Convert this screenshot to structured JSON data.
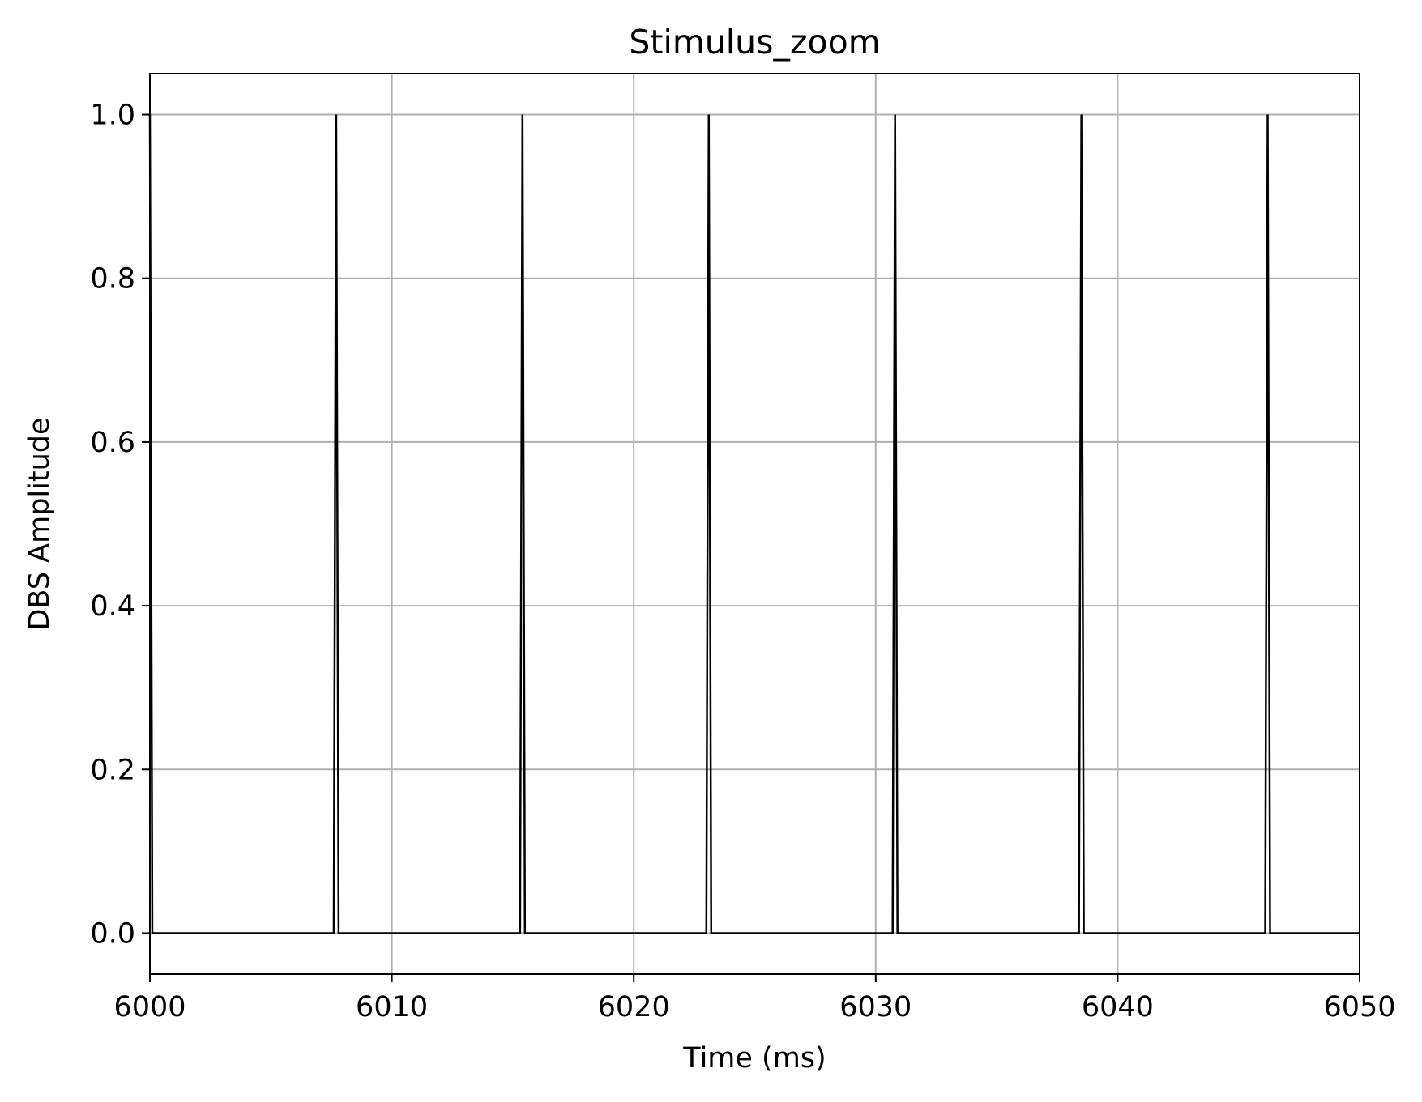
{
  "chart_data": {
    "type": "line",
    "title": "Stimulus_zoom",
    "xlabel": "Time (ms)",
    "ylabel": "DBS Amplitude",
    "xlim": [
      6000,
      6050
    ],
    "ylim": [
      -0.05,
      1.05
    ],
    "xticks": [
      6000,
      6010,
      6020,
      6030,
      6040,
      6050
    ],
    "xtick_labels": [
      "6000",
      "6010",
      "6020",
      "6030",
      "6040",
      "6050"
    ],
    "yticks": [
      0.0,
      0.2,
      0.4,
      0.6,
      0.8,
      1.0
    ],
    "ytick_labels": [
      "0.0",
      "0.2",
      "0.4",
      "0.6",
      "0.8",
      "1.0"
    ],
    "grid": true,
    "line_color": "#000000",
    "grid_color": "#b0b0b0",
    "series": [
      {
        "x": [
          6000.0,
          6000.1,
          6007.6,
          6007.7,
          6007.8,
          6015.3,
          6015.4,
          6015.5,
          6023.0,
          6023.1,
          6023.2,
          6030.7,
          6030.8,
          6030.9,
          6038.4,
          6038.5,
          6038.6,
          6046.1,
          6046.2,
          6046.3,
          6050.0
        ],
        "y": [
          1.0,
          0.0,
          0.0,
          1.0,
          0.0,
          0.0,
          1.0,
          0.0,
          0.0,
          1.0,
          0.0,
          0.0,
          1.0,
          0.0,
          0.0,
          1.0,
          0.0,
          0.0,
          1.0,
          0.0,
          0.0
        ]
      }
    ]
  }
}
